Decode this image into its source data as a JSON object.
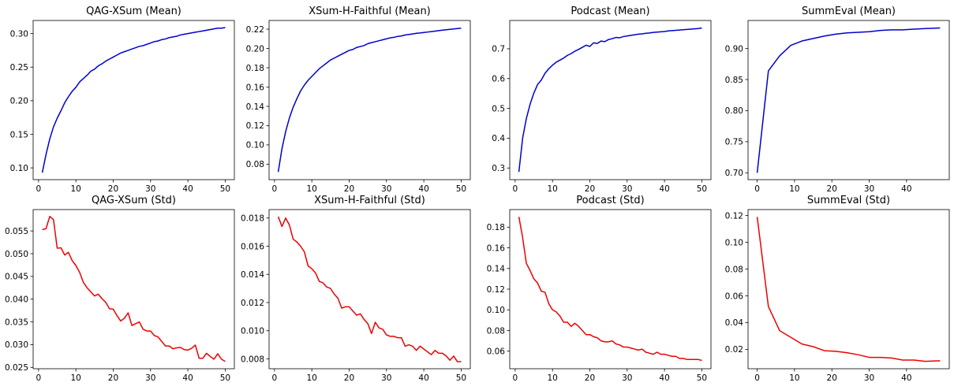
{
  "chart_data": [
    {
      "type": "line",
      "title": "QAG-XSum (Mean)",
      "xlim": [
        -1.45,
        52.45
      ],
      "ylim": [
        0.0825,
        0.3195
      ],
      "xticks": [
        0,
        10,
        20,
        30,
        40,
        50
      ],
      "yticks": [
        0.1,
        0.15,
        0.2,
        0.25,
        0.3
      ],
      "ytick_labels": [
        "0.10",
        "0.15",
        "0.20",
        "0.25",
        "0.30"
      ],
      "color": "#0000cc",
      "series": [
        {
          "x": [
            1,
            2,
            3,
            4,
            5,
            6,
            7,
            8,
            9,
            10,
            11,
            12,
            13,
            14,
            15,
            16,
            17,
            18,
            19,
            20,
            21,
            22,
            23,
            24,
            25,
            26,
            27,
            28,
            29,
            30,
            31,
            32,
            33,
            34,
            35,
            36,
            37,
            38,
            39,
            40,
            41,
            42,
            43,
            44,
            45,
            46,
            47,
            48,
            49,
            50
          ],
          "values": [
            0.093,
            0.12,
            0.143,
            0.161,
            0.174,
            0.185,
            0.197,
            0.206,
            0.214,
            0.22,
            0.228,
            0.233,
            0.238,
            0.244,
            0.247,
            0.252,
            0.255,
            0.259,
            0.262,
            0.265,
            0.268,
            0.271,
            0.273,
            0.275,
            0.277,
            0.279,
            0.281,
            0.282,
            0.284,
            0.286,
            0.288,
            0.289,
            0.291,
            0.292,
            0.294,
            0.295,
            0.296,
            0.298,
            0.299,
            0.3,
            0.301,
            0.302,
            0.303,
            0.304,
            0.305,
            0.306,
            0.307,
            0.308,
            0.308,
            0.309
          ]
        }
      ]
    },
    {
      "type": "line",
      "title": "XSum-H-Faithful (Mean)",
      "xlim": [
        -1.45,
        52.45
      ],
      "ylim": [
        0.064,
        0.229
      ],
      "xticks": [
        0,
        10,
        20,
        30,
        40,
        50
      ],
      "yticks": [
        0.08,
        0.1,
        0.12,
        0.14,
        0.16,
        0.18,
        0.2,
        0.22
      ],
      "ytick_labels": [
        "0.08",
        "0.10",
        "0.12",
        "0.14",
        "0.16",
        "0.18",
        "0.20",
        "0.22"
      ],
      "color": "#0000cc",
      "series": [
        {
          "x": [
            1,
            2,
            3,
            4,
            5,
            6,
            7,
            8,
            9,
            10,
            11,
            12,
            13,
            14,
            15,
            16,
            17,
            18,
            19,
            20,
            21,
            22,
            23,
            24,
            25,
            26,
            27,
            28,
            29,
            30,
            31,
            32,
            33,
            34,
            35,
            36,
            37,
            38,
            39,
            40,
            41,
            42,
            43,
            44,
            45,
            46,
            47,
            48,
            49,
            50
          ],
          "values": [
            0.072,
            0.096,
            0.114,
            0.128,
            0.139,
            0.148,
            0.156,
            0.162,
            0.167,
            0.171,
            0.175,
            0.179,
            0.182,
            0.185,
            0.188,
            0.19,
            0.192,
            0.194,
            0.196,
            0.198,
            0.199,
            0.201,
            0.202,
            0.203,
            0.205,
            0.206,
            0.207,
            0.208,
            0.209,
            0.21,
            0.211,
            0.2115,
            0.2125,
            0.213,
            0.214,
            0.2145,
            0.215,
            0.2157,
            0.216,
            0.2165,
            0.217,
            0.2175,
            0.218,
            0.2185,
            0.219,
            0.2194,
            0.2198,
            0.2202,
            0.2206,
            0.221
          ]
        }
      ]
    },
    {
      "type": "line",
      "title": "Podcast (Mean)",
      "xlim": [
        -1.45,
        52.45
      ],
      "ylim": [
        0.261,
        0.795
      ],
      "xticks": [
        0,
        10,
        20,
        30,
        40,
        50
      ],
      "yticks": [
        0.3,
        0.4,
        0.5,
        0.6,
        0.7
      ],
      "ytick_labels": [
        "0.3",
        "0.4",
        "0.5",
        "0.6",
        "0.7"
      ],
      "color": "#0000cc",
      "series": [
        {
          "x": [
            1,
            2,
            3,
            4,
            5,
            6,
            7,
            8,
            9,
            10,
            11,
            12,
            13,
            14,
            15,
            16,
            17,
            18,
            19,
            20,
            21,
            22,
            23,
            24,
            25,
            26,
            27,
            28,
            29,
            30,
            31,
            32,
            33,
            34,
            35,
            36,
            37,
            38,
            39,
            40,
            41,
            42,
            43,
            44,
            45,
            46,
            47,
            48,
            49,
            50
          ],
          "values": [
            0.287,
            0.4,
            0.466,
            0.514,
            0.551,
            0.58,
            0.595,
            0.618,
            0.633,
            0.645,
            0.655,
            0.662,
            0.669,
            0.678,
            0.684,
            0.692,
            0.698,
            0.705,
            0.712,
            0.708,
            0.72,
            0.718,
            0.726,
            0.724,
            0.731,
            0.734,
            0.738,
            0.737,
            0.741,
            0.743,
            0.745,
            0.747,
            0.749,
            0.75,
            0.752,
            0.753,
            0.755,
            0.756,
            0.757,
            0.758,
            0.76,
            0.761,
            0.762,
            0.763,
            0.764,
            0.765,
            0.766,
            0.767,
            0.768,
            0.77
          ]
        }
      ]
    },
    {
      "type": "line",
      "title": "SummEval (Mean)",
      "xlim": [
        -2.45,
        51.45
      ],
      "ylim": [
        0.689,
        0.945
      ],
      "xticks": [
        0,
        10,
        20,
        30,
        40
      ],
      "yticks": [
        0.7,
        0.75,
        0.8,
        0.85,
        0.9
      ],
      "ytick_labels": [
        "0.70",
        "0.75",
        "0.80",
        "0.85",
        "0.90"
      ],
      "color": "#0000cc",
      "series": [
        {
          "x": [
            0,
            3,
            6,
            9,
            12,
            15,
            18,
            21,
            24,
            27,
            30,
            33,
            36,
            39,
            42,
            45,
            49
          ],
          "values": [
            0.7,
            0.864,
            0.888,
            0.905,
            0.912,
            0.916,
            0.92,
            0.923,
            0.925,
            0.926,
            0.927,
            0.929,
            0.93,
            0.93,
            0.931,
            0.932,
            0.933
          ]
        }
      ]
    },
    {
      "type": "line",
      "title": "QAG-XSum (Std)",
      "xlim": [
        -1.45,
        52.45
      ],
      "ylim": [
        0.0247,
        0.0597
      ],
      "xticks": [
        0,
        10,
        20,
        30,
        40,
        50
      ],
      "yticks": [
        0.025,
        0.03,
        0.035,
        0.04,
        0.045,
        0.05,
        0.055
      ],
      "ytick_labels": [
        "0.025",
        "0.030",
        "0.035",
        "0.040",
        "0.045",
        "0.050",
        "0.055"
      ],
      "color": "#ee0000",
      "series": [
        {
          "x": [
            1,
            2,
            3,
            4,
            5,
            6,
            7,
            8,
            9,
            10,
            11,
            12,
            13,
            14,
            15,
            16,
            17,
            18,
            19,
            20,
            21,
            22,
            23,
            24,
            25,
            26,
            27,
            28,
            29,
            30,
            31,
            32,
            33,
            34,
            35,
            36,
            37,
            38,
            39,
            40,
            41,
            42,
            43,
            44,
            45,
            46,
            47,
            48,
            49,
            50
          ],
          "values": [
            0.0553,
            0.0555,
            0.0582,
            0.0575,
            0.0512,
            0.0513,
            0.0497,
            0.0503,
            0.0485,
            0.0474,
            0.0459,
            0.0437,
            0.0425,
            0.0416,
            0.0407,
            0.0411,
            0.0401,
            0.0393,
            0.0379,
            0.0378,
            0.0364,
            0.0352,
            0.0358,
            0.037,
            0.0342,
            0.0346,
            0.035,
            0.0334,
            0.033,
            0.033,
            0.032,
            0.0317,
            0.0307,
            0.0297,
            0.0297,
            0.0291,
            0.0293,
            0.0294,
            0.0289,
            0.0288,
            0.0292,
            0.0299,
            0.027,
            0.027,
            0.0281,
            0.0274,
            0.0268,
            0.028,
            0.0268,
            0.0263
          ]
        }
      ]
    },
    {
      "type": "line",
      "title": "XSum-H-Faithful (Std)",
      "xlim": [
        -1.45,
        52.45
      ],
      "ylim": [
        0.0073,
        0.0186
      ],
      "xticks": [
        0,
        10,
        20,
        30,
        40,
        50
      ],
      "yticks": [
        0.008,
        0.01,
        0.012,
        0.014,
        0.016,
        0.018
      ],
      "ytick_labels": [
        "0.008",
        "0.010",
        "0.012",
        "0.014",
        "0.016",
        "0.018"
      ],
      "color": "#ee0000",
      "series": [
        {
          "x": [
            1,
            2,
            3,
            4,
            5,
            6,
            7,
            8,
            9,
            10,
            11,
            12,
            13,
            14,
            15,
            16,
            17,
            18,
            19,
            20,
            21,
            22,
            23,
            24,
            25,
            26,
            27,
            28,
            29,
            30,
            31,
            32,
            33,
            34,
            35,
            36,
            37,
            38,
            39,
            40,
            41,
            42,
            43,
            44,
            45,
            46,
            47,
            48,
            49,
            50
          ],
          "values": [
            0.0181,
            0.0174,
            0.018,
            0.0175,
            0.0165,
            0.0163,
            0.016,
            0.0156,
            0.0146,
            0.0144,
            0.0141,
            0.0135,
            0.0134,
            0.0131,
            0.013,
            0.0126,
            0.0123,
            0.0116,
            0.0117,
            0.0117,
            0.0114,
            0.0111,
            0.0112,
            0.0108,
            0.0105,
            0.0098,
            0.0106,
            0.0102,
            0.0101,
            0.0097,
            0.0096,
            0.0096,
            0.0095,
            0.0095,
            0.0089,
            0.009,
            0.0089,
            0.0086,
            0.0089,
            0.0087,
            0.0085,
            0.0083,
            0.0086,
            0.0084,
            0.0084,
            0.0082,
            0.0079,
            0.0082,
            0.0078,
            0.0078
          ]
        }
      ]
    },
    {
      "type": "line",
      "title": "Podcast (Std)",
      "xlim": [
        -1.45,
        52.45
      ],
      "ylim": [
        0.043,
        0.197
      ],
      "xticks": [
        0,
        10,
        20,
        30,
        40,
        50
      ],
      "yticks": [
        0.06,
        0.08,
        0.1,
        0.12,
        0.14,
        0.16,
        0.18
      ],
      "ytick_labels": [
        "0.06",
        "0.08",
        "0.10",
        "0.12",
        "0.14",
        "0.16",
        "0.18"
      ],
      "color": "#ee0000",
      "series": [
        {
          "x": [
            1,
            2,
            3,
            4,
            5,
            6,
            7,
            8,
            9,
            10,
            11,
            12,
            13,
            14,
            15,
            16,
            17,
            18,
            19,
            20,
            21,
            22,
            23,
            24,
            25,
            26,
            27,
            28,
            29,
            30,
            31,
            32,
            33,
            34,
            35,
            36,
            37,
            38,
            39,
            40,
            41,
            42,
            43,
            44,
            45,
            46,
            47,
            48,
            49,
            50
          ],
          "values": [
            0.19,
            0.17,
            0.145,
            0.138,
            0.13,
            0.126,
            0.118,
            0.117,
            0.106,
            0.1,
            0.098,
            0.094,
            0.088,
            0.088,
            0.084,
            0.087,
            0.084,
            0.08,
            0.076,
            0.076,
            0.074,
            0.073,
            0.07,
            0.069,
            0.069,
            0.07,
            0.067,
            0.066,
            0.064,
            0.064,
            0.063,
            0.062,
            0.061,
            0.062,
            0.059,
            0.058,
            0.057,
            0.059,
            0.057,
            0.057,
            0.056,
            0.055,
            0.055,
            0.053,
            0.053,
            0.052,
            0.052,
            0.052,
            0.052,
            0.051
          ]
        }
      ]
    },
    {
      "type": "line",
      "title": "SummEval (Std)",
      "xlim": [
        -2.45,
        51.45
      ],
      "ylim": [
        0.0055,
        0.1245
      ],
      "xticks": [
        0,
        10,
        20,
        30,
        40
      ],
      "yticks": [
        0.02,
        0.04,
        0.06,
        0.08,
        0.1,
        0.12
      ],
      "ytick_labels": [
        "0.02",
        "0.04",
        "0.06",
        "0.08",
        "0.10",
        "0.12"
      ],
      "color": "#ee0000",
      "series": [
        {
          "x": [
            0,
            3,
            6,
            9,
            12,
            15,
            18,
            21,
            24,
            27,
            30,
            33,
            36,
            39,
            42,
            45,
            49
          ],
          "values": [
            0.119,
            0.052,
            0.034,
            0.029,
            0.024,
            0.022,
            0.019,
            0.0185,
            0.0175,
            0.016,
            0.014,
            0.014,
            0.0135,
            0.012,
            0.012,
            0.011,
            0.0115
          ]
        }
      ]
    }
  ]
}
